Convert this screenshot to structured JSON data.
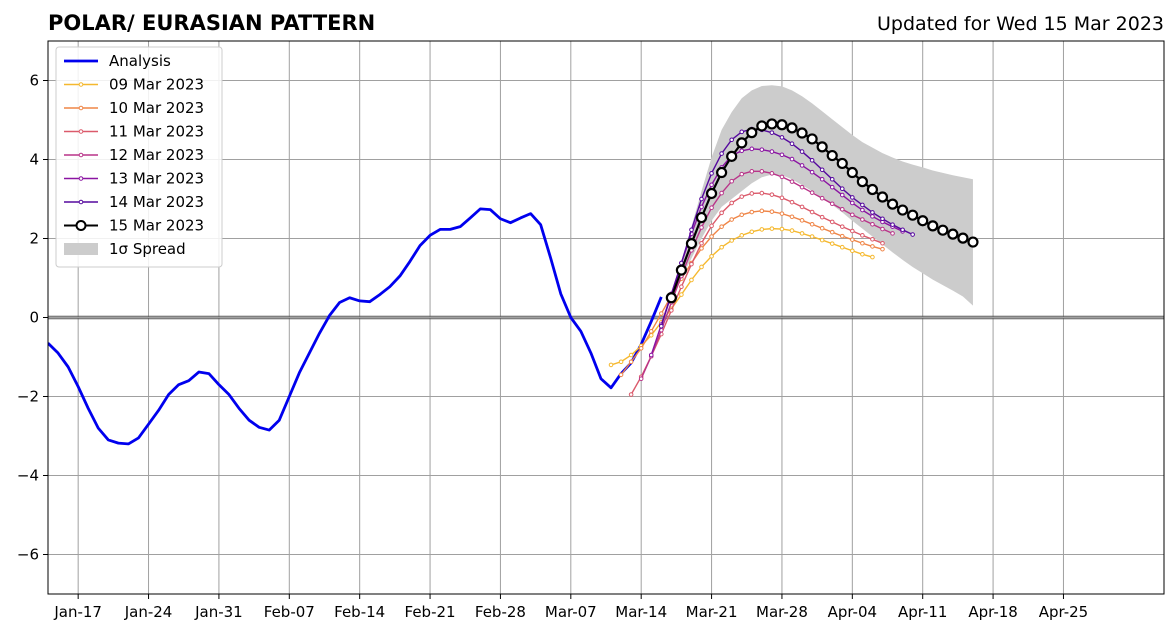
{
  "chart_data": {
    "type": "line",
    "title": "POLAR/ EURASIAN  PATTERN",
    "subtitle": "Updated for Wed 15 Mar 2023",
    "xlabel": "",
    "ylabel": "",
    "x_axis": {
      "type": "date",
      "range": [
        "2023-01-14",
        "2023-05-05"
      ],
      "ticks": [
        {
          "date": "2023-01-17",
          "label": "Jan-17"
        },
        {
          "date": "2023-01-24",
          "label": "Jan-24"
        },
        {
          "date": "2023-01-31",
          "label": "Jan-31"
        },
        {
          "date": "2023-02-07",
          "label": "Feb-07"
        },
        {
          "date": "2023-02-14",
          "label": "Feb-14"
        },
        {
          "date": "2023-02-21",
          "label": "Feb-21"
        },
        {
          "date": "2023-02-28",
          "label": "Feb-28"
        },
        {
          "date": "2023-03-07",
          "label": "Mar-07"
        },
        {
          "date": "2023-03-14",
          "label": "Mar-14"
        },
        {
          "date": "2023-03-21",
          "label": "Mar-21"
        },
        {
          "date": "2023-03-28",
          "label": "Mar-28"
        },
        {
          "date": "2023-04-04",
          "label": "Apr-04"
        },
        {
          "date": "2023-04-11",
          "label": "Apr-11"
        },
        {
          "date": "2023-04-18",
          "label": "Apr-18"
        },
        {
          "date": "2023-04-25",
          "label": "Apr-25"
        }
      ]
    },
    "y_axis": {
      "range": [
        -7,
        7
      ],
      "ticks": [
        {
          "value": -6,
          "label": "−6"
        },
        {
          "value": -4,
          "label": "−4"
        },
        {
          "value": -2,
          "label": "−2"
        },
        {
          "value": 0,
          "label": "0"
        },
        {
          "value": 2,
          "label": "2"
        },
        {
          "value": 4,
          "label": "4"
        },
        {
          "value": 6,
          "label": "6"
        }
      ]
    },
    "grid": true,
    "zero_line": true,
    "legend": {
      "position": "top-left",
      "entries": [
        {
          "label": "Analysis",
          "color": "#0000ee",
          "kind": "line"
        },
        {
          "label": "09 Mar 2023",
          "color": "#f5b82e",
          "kind": "dotline"
        },
        {
          "label": "10 Mar 2023",
          "color": "#ef8547",
          "kind": "dotline"
        },
        {
          "label": "11 Mar 2023",
          "color": "#db5a6b",
          "kind": "dotline"
        },
        {
          "label": "12 Mar 2023",
          "color": "#b93489",
          "kind": "dotline"
        },
        {
          "label": "13 Mar 2023",
          "color": "#8b14a2",
          "kind": "dotline"
        },
        {
          "label": "14 Mar 2023",
          "color": "#55089e",
          "kind": "dotline"
        },
        {
          "label": "15 Mar 2023",
          "color": "#000000",
          "kind": "circles"
        },
        {
          "label": "1σ Spread",
          "color": "#cccccc",
          "kind": "patch"
        }
      ]
    },
    "analysis": {
      "name": "Analysis",
      "start": "2023-01-14",
      "values": [
        -0.65,
        -0.9,
        -1.25,
        -1.75,
        -2.3,
        -2.8,
        -3.1,
        -3.18,
        -3.2,
        -3.05,
        -2.7,
        -2.35,
        -1.95,
        -1.7,
        -1.6,
        -1.38,
        -1.42,
        -1.7,
        -1.95,
        -2.3,
        -2.6,
        -2.78,
        -2.85,
        -2.6,
        -2.0,
        -1.4,
        -0.9,
        -0.4,
        0.05,
        0.38,
        0.5,
        0.42,
        0.4,
        0.58,
        0.78,
        1.05,
        1.42,
        1.82,
        2.08,
        2.23,
        2.23,
        2.3,
        2.52,
        2.75,
        2.73,
        2.5,
        2.4,
        2.52,
        2.63,
        2.35,
        1.5,
        0.6,
        0.0,
        -0.35,
        -0.9,
        -1.55,
        -1.78,
        -1.42,
        -1.15,
        -0.68,
        -0.1,
        0.52
      ]
    },
    "forecasts": [
      {
        "name": "09 Mar 2023",
        "start": "2023-03-11",
        "values": [
          -1.2,
          -1.12,
          -0.95,
          -0.72,
          -0.45,
          -0.12,
          0.22,
          0.58,
          0.95,
          1.28,
          1.55,
          1.78,
          1.95,
          2.08,
          2.17,
          2.23,
          2.25,
          2.24,
          2.2,
          2.13,
          2.05,
          1.96,
          1.87,
          1.78,
          1.69,
          1.6,
          1.53
        ]
      },
      {
        "name": "10 Mar 2023",
        "start": "2023-03-12",
        "values": [
          -1.45,
          -1.12,
          -0.78,
          -0.35,
          0.1,
          0.55,
          0.98,
          1.38,
          1.75,
          2.05,
          2.3,
          2.48,
          2.6,
          2.67,
          2.7,
          2.68,
          2.63,
          2.55,
          2.46,
          2.36,
          2.26,
          2.16,
          2.06,
          1.97,
          1.88,
          1.8,
          1.73
        ]
      },
      {
        "name": "11 Mar 2023",
        "start": "2023-03-13",
        "values": [
          -1.95,
          -1.5,
          -0.98,
          -0.42,
          0.18,
          0.78,
          1.35,
          1.88,
          2.32,
          2.65,
          2.9,
          3.06,
          3.14,
          3.15,
          3.11,
          3.03,
          2.92,
          2.8,
          2.67,
          2.54,
          2.42,
          2.3,
          2.19,
          2.08,
          1.98,
          1.88
        ]
      },
      {
        "name": "12 Mar 2023",
        "start": "2023-03-14",
        "values": [
          -1.55,
          -0.98,
          -0.32,
          0.38,
          1.05,
          1.7,
          2.28,
          2.78,
          3.15,
          3.45,
          3.63,
          3.7,
          3.7,
          3.65,
          3.56,
          3.44,
          3.3,
          3.16,
          3.02,
          2.88,
          2.74,
          2.6,
          2.48,
          2.36,
          2.24,
          2.13
        ]
      },
      {
        "name": "13 Mar 2023",
        "start": "2023-03-15",
        "values": [
          -0.95,
          -0.18,
          0.6,
          1.38,
          2.12,
          2.8,
          3.36,
          3.8,
          4.1,
          4.22,
          4.27,
          4.25,
          4.2,
          4.12,
          4.01,
          3.85,
          3.68,
          3.5,
          3.3,
          3.1,
          2.9,
          2.72,
          2.56,
          2.42,
          2.3,
          2.18
        ]
      },
      {
        "name": "14 Mar 2023",
        "start": "2023-03-16",
        "values": [
          -0.22,
          0.58,
          1.38,
          2.22,
          3.0,
          3.65,
          4.15,
          4.5,
          4.7,
          4.77,
          4.75,
          4.68,
          4.56,
          4.4,
          4.2,
          3.98,
          3.74,
          3.5,
          3.26,
          3.04,
          2.85,
          2.66,
          2.5,
          2.35,
          2.22,
          2.1
        ]
      },
      {
        "name": "15 Mar 2023",
        "start": "2023-03-17",
        "values": [
          0.5,
          1.2,
          1.87,
          2.53,
          3.14,
          3.67,
          4.08,
          4.42,
          4.68,
          4.85,
          4.9,
          4.88,
          4.8,
          4.67,
          4.52,
          4.32,
          4.1,
          3.9,
          3.67,
          3.44,
          3.24,
          3.05,
          2.87,
          2.72,
          2.59,
          2.45,
          2.32,
          2.21,
          2.11,
          2.01,
          1.91
        ]
      }
    ],
    "spread_1sigma": {
      "start": "2023-03-17",
      "upper": [
        0.6,
        1.4,
        2.3,
        3.2,
        4.05,
        4.75,
        5.2,
        5.55,
        5.75,
        5.86,
        5.88,
        5.85,
        5.75,
        5.6,
        5.42,
        5.22,
        5.02,
        4.82,
        4.62,
        4.44,
        4.3,
        4.16,
        4.05,
        3.95,
        3.87,
        3.8,
        3.72,
        3.66,
        3.6,
        3.55,
        3.5
      ],
      "lower": [
        0.5,
        1.0,
        1.5,
        2.0,
        2.45,
        2.8,
        3.0,
        3.2,
        3.4,
        3.55,
        3.62,
        3.6,
        3.5,
        3.35,
        3.2,
        3.02,
        2.85,
        2.66,
        2.45,
        2.25,
        2.05,
        1.85,
        1.65,
        1.46,
        1.28,
        1.12,
        0.96,
        0.82,
        0.68,
        0.53,
        0.3
      ]
    }
  }
}
